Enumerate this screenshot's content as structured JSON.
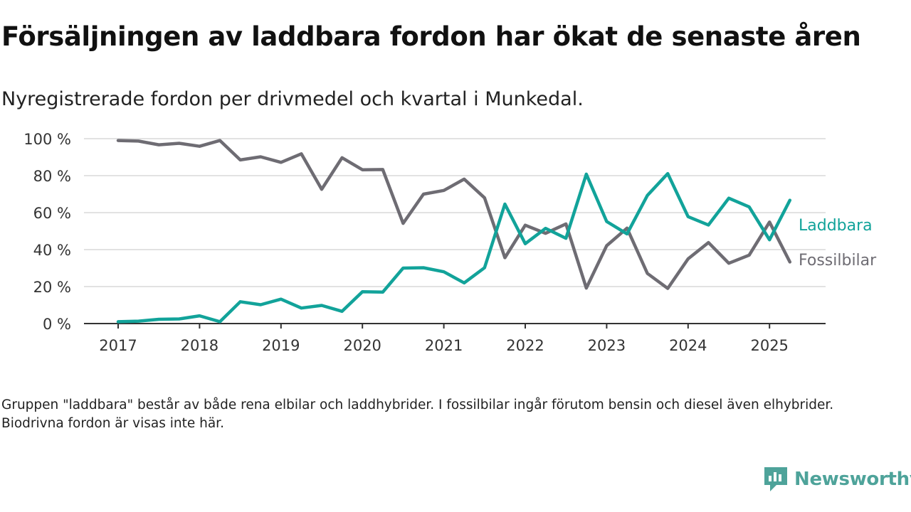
{
  "header": {
    "title": "Försäljningen av laddbara fordon har ökat de senaste åren",
    "subtitle": "Nyregistrerade fordon per drivmedel och kvartal i Munkedal."
  },
  "footer": {
    "note": "Gruppen \"laddbara\" består av både rena elbilar och laddhybrider. I fossilbilar ingår förutom bensin och diesel även elhybrider. Biodrivna fordon är visas inte här.",
    "brand": "Newsworthy",
    "brand_color": "#4ea39a",
    "brand_icon": "bar-chart-speech-bubble-icon"
  },
  "chart_data": {
    "type": "line",
    "title": "",
    "xlabel": "",
    "ylabel": "",
    "x": [
      "2017 Q1",
      "2017 Q2",
      "2017 Q3",
      "2017 Q4",
      "2018 Q1",
      "2018 Q2",
      "2018 Q3",
      "2018 Q4",
      "2019 Q1",
      "2019 Q2",
      "2019 Q3",
      "2019 Q4",
      "2020 Q1",
      "2020 Q2",
      "2020 Q3",
      "2020 Q4",
      "2021 Q1",
      "2021 Q2",
      "2021 Q3",
      "2021 Q4",
      "2022 Q1",
      "2022 Q2",
      "2022 Q3",
      "2022 Q4",
      "2023 Q1",
      "2023 Q2",
      "2023 Q3",
      "2023 Q4",
      "2024 Q1",
      "2024 Q2",
      "2024 Q3",
      "2024 Q4",
      "2025 Q1",
      "2025 Q2"
    ],
    "x_tick_labels": [
      "2017",
      "2018",
      "2019",
      "2020",
      "2021",
      "2022",
      "2023",
      "2024",
      "2025"
    ],
    "y_tick_labels": [
      "0 %",
      "20 %",
      "40 %",
      "60 %",
      "80 %",
      "100 %"
    ],
    "y_ticks": [
      0,
      20,
      40,
      60,
      80,
      100
    ],
    "ylim": [
      0,
      100
    ],
    "y_unit": "%",
    "grid": true,
    "legend": "inline labels at right end of lines",
    "series": [
      {
        "name": "Laddbara",
        "color": "#12a39a",
        "values": [
          1,
          1.3,
          2.3,
          2.5,
          4.2,
          1,
          11.8,
          10.2,
          13.2,
          8.4,
          9.8,
          6.6,
          17.2,
          17,
          30,
          30.2,
          28,
          22,
          30.2,
          64.6,
          43.2,
          51.5,
          46.1,
          80.8,
          55.2,
          48.5,
          69.3,
          81.1,
          57.8,
          53.3,
          67.8,
          63.1,
          45.3,
          66.7
        ]
      },
      {
        "name": "Fossilbilar",
        "color": "#6e6c73",
        "values": [
          99,
          98.7,
          96.7,
          97.5,
          95.9,
          99,
          88.5,
          90.2,
          87.2,
          91.8,
          72.6,
          89.7,
          83.2,
          83.3,
          54.2,
          70,
          72,
          78.1,
          68,
          35.6,
          53.2,
          48.8,
          53.9,
          19.2,
          42.1,
          51.6,
          27.1,
          19,
          35,
          43.8,
          32.6,
          37,
          54.9,
          33.3
        ]
      }
    ]
  }
}
